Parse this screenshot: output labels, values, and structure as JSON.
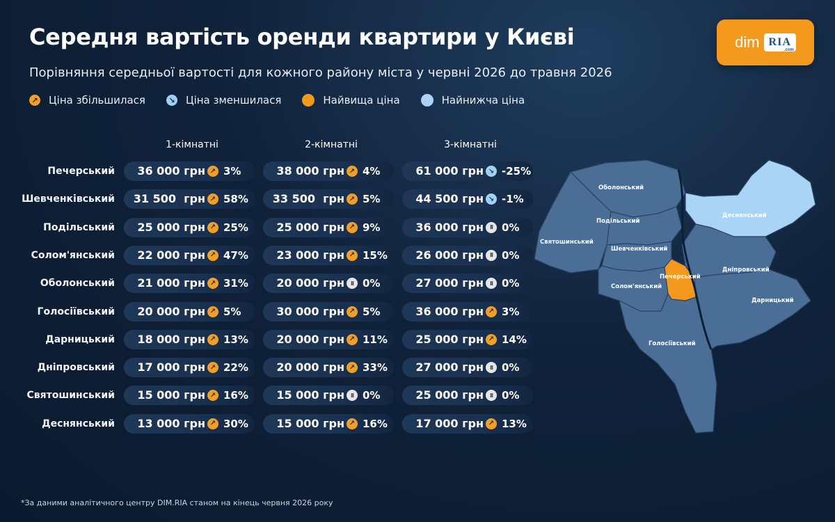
{
  "title": "Середня вартість оренди квартири у Києві",
  "subtitle": "Порівняння середньої вартості для кожного району міста у червні 2026 до травня 2026",
  "legend": {
    "increase": "Ціна збільшилася",
    "decrease": "Ціна зменшилася",
    "highest": "Найвища ціна",
    "lowest": "Найнижча ціна"
  },
  "colors": {
    "increase": "#f0a028",
    "decrease": "#9fd0f5",
    "highest": "#f39a1e",
    "lowest": "#a9d4f5",
    "map_default": "#4a6e96"
  },
  "logo": {
    "left": "dim",
    "right": "RIA",
    "suffix": ".com"
  },
  "columns": [
    "1-кімнатні",
    "2-кімнатні",
    "3-кімнатні"
  ],
  "rows": [
    {
      "district": "Печерський",
      "cells": [
        {
          "price": "36 000 грн",
          "trend": "up",
          "change": "3%"
        },
        {
          "price": "38 000 грн",
          "trend": "up",
          "change": "4%"
        },
        {
          "price": "61 000 грн",
          "trend": "down",
          "change": "-25%"
        }
      ]
    },
    {
      "district": "Шевченківський",
      "cells": [
        {
          "price": "31 500  грн",
          "trend": "up",
          "change": "58%"
        },
        {
          "price": "33 500  грн",
          "trend": "up",
          "change": "5%"
        },
        {
          "price": "44 500 грн",
          "trend": "down",
          "change": "-1%"
        }
      ]
    },
    {
      "district": "Подільський",
      "cells": [
        {
          "price": "25 000 грн",
          "trend": "up",
          "change": "25%"
        },
        {
          "price": "25 000 грн",
          "trend": "up",
          "change": "9%"
        },
        {
          "price": "36 000 грн",
          "trend": "same",
          "change": "0%"
        }
      ]
    },
    {
      "district": "Солом'янський",
      "cells": [
        {
          "price": "22 000 грн",
          "trend": "up",
          "change": "47%"
        },
        {
          "price": "23 000 грн",
          "trend": "up",
          "change": "15%"
        },
        {
          "price": "26 000 грн",
          "trend": "same",
          "change": "0%"
        }
      ]
    },
    {
      "district": "Оболонський",
      "cells": [
        {
          "price": "21 000 грн",
          "trend": "up",
          "change": "31%"
        },
        {
          "price": "20 000 грн",
          "trend": "same",
          "change": "0%"
        },
        {
          "price": "27 000 грн",
          "trend": "same",
          "change": "0%"
        }
      ]
    },
    {
      "district": "Голосіївський",
      "cells": [
        {
          "price": "20 000 грн",
          "trend": "up",
          "change": "5%"
        },
        {
          "price": "30 000 грн",
          "trend": "up",
          "change": "5%"
        },
        {
          "price": "36 000 грн",
          "trend": "up",
          "change": "3%"
        }
      ]
    },
    {
      "district": "Дарницький",
      "cells": [
        {
          "price": "18 000 грн",
          "trend": "up",
          "change": "13%"
        },
        {
          "price": "20 000 грн",
          "trend": "up",
          "change": "11%"
        },
        {
          "price": "25 000 грн",
          "trend": "up",
          "change": "14%"
        }
      ]
    },
    {
      "district": "Дніпровський",
      "cells": [
        {
          "price": "17 000 грн",
          "trend": "up",
          "change": "22%"
        },
        {
          "price": "20 000 грн",
          "trend": "up",
          "change": "33%"
        },
        {
          "price": "27 000 грн",
          "trend": "same",
          "change": "0%"
        }
      ]
    },
    {
      "district": "Святошинський",
      "cells": [
        {
          "price": "15 000 грн",
          "trend": "up",
          "change": "16%"
        },
        {
          "price": "15 000 грн",
          "trend": "same",
          "change": "0%"
        },
        {
          "price": "25 000 грн",
          "trend": "same",
          "change": "0%"
        }
      ]
    },
    {
      "district": "Деснянський",
      "cells": [
        {
          "price": "13 000 грн",
          "trend": "up",
          "change": "30%"
        },
        {
          "price": "15 000 грн",
          "trend": "up",
          "change": "16%"
        },
        {
          "price": "17 000 грн",
          "trend": "up",
          "change": "13%"
        }
      ]
    }
  ],
  "map": {
    "labels": {
      "obolonskyi": "Оболонський",
      "desnianskyi": "Деснянський",
      "podilskyi": "Подільський",
      "sviatoshynskyi": "Святошинський",
      "shevchenkivskyi": "Шевченківський",
      "dniprovskyi": "Дніпровський",
      "pecherskyi": "Печерський",
      "solomianskyi": "Солом'янський",
      "darnytskyi": "Дарницький",
      "holosiivskyi": "Голосіївський"
    },
    "highest_district": "Печерський",
    "lowest_district": "Деснянський"
  },
  "footnote": "*За даними аналітичного центру DIM.RIA станом на кінець червня 2026 року"
}
